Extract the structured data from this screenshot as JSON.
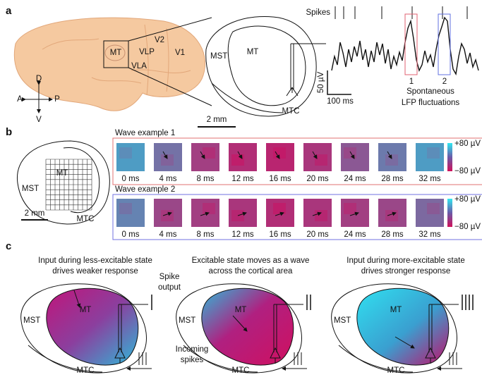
{
  "panel_a": {
    "label": "a",
    "spikes_label": "Spikes",
    "brain_areas": [
      "MT",
      "VLP",
      "V2",
      "V1",
      "VLA"
    ],
    "compass": {
      "dorsal": "D",
      "anterior": "A",
      "posterior": "P",
      "ventral": "V"
    },
    "inset": {
      "mst": "MST",
      "mt": "MT",
      "mtc": "MTC",
      "scale": "2 mm"
    },
    "lfp": {
      "voltage_scale": "50 µV",
      "time_scale": "100 ms",
      "events": [
        "1",
        "2"
      ],
      "caption": [
        "Spontaneous",
        "LFP fluctuations"
      ]
    }
  },
  "panel_b": {
    "label": "b",
    "map": {
      "mt": "MT",
      "mst": "MST",
      "mtc": "MTC",
      "scale": "2 mm"
    },
    "waves": [
      {
        "title": "Wave example 1",
        "times": [
          "0 ms",
          "4 ms",
          "8 ms",
          "12 ms",
          "16 ms",
          "20 ms",
          "24 ms",
          "28 ms",
          "32 ms"
        ],
        "colorbar": [
          "+80 µV",
          "−80 µV"
        ]
      },
      {
        "title": "Wave example 2",
        "times": [
          "0 ms",
          "4 ms",
          "8 ms",
          "12 ms",
          "16 ms",
          "20 ms",
          "24 ms",
          "28 ms",
          "32 ms"
        ],
        "colorbar": [
          "+80 µV",
          "−80 µV"
        ]
      }
    ]
  },
  "panel_c": {
    "label": "c",
    "panels": [
      {
        "caption": [
          "Input during less-excitable state",
          "drives weaker response"
        ],
        "mt": "MT",
        "mst": "MST",
        "mtc": "MTC"
      },
      {
        "caption": [
          "Excitable state moves as a wave",
          "across the cortical area"
        ],
        "mt": "MT",
        "mst": "MST",
        "mtc": "MTC"
      },
      {
        "caption": [
          "Input during more-excitable state",
          "drives stronger response"
        ],
        "mt": "MT",
        "mst": "MST",
        "mtc": "MTC"
      }
    ],
    "spike_output": [
      "Spike",
      "output"
    ],
    "incoming": [
      "Incoming",
      "spikes"
    ]
  }
}
